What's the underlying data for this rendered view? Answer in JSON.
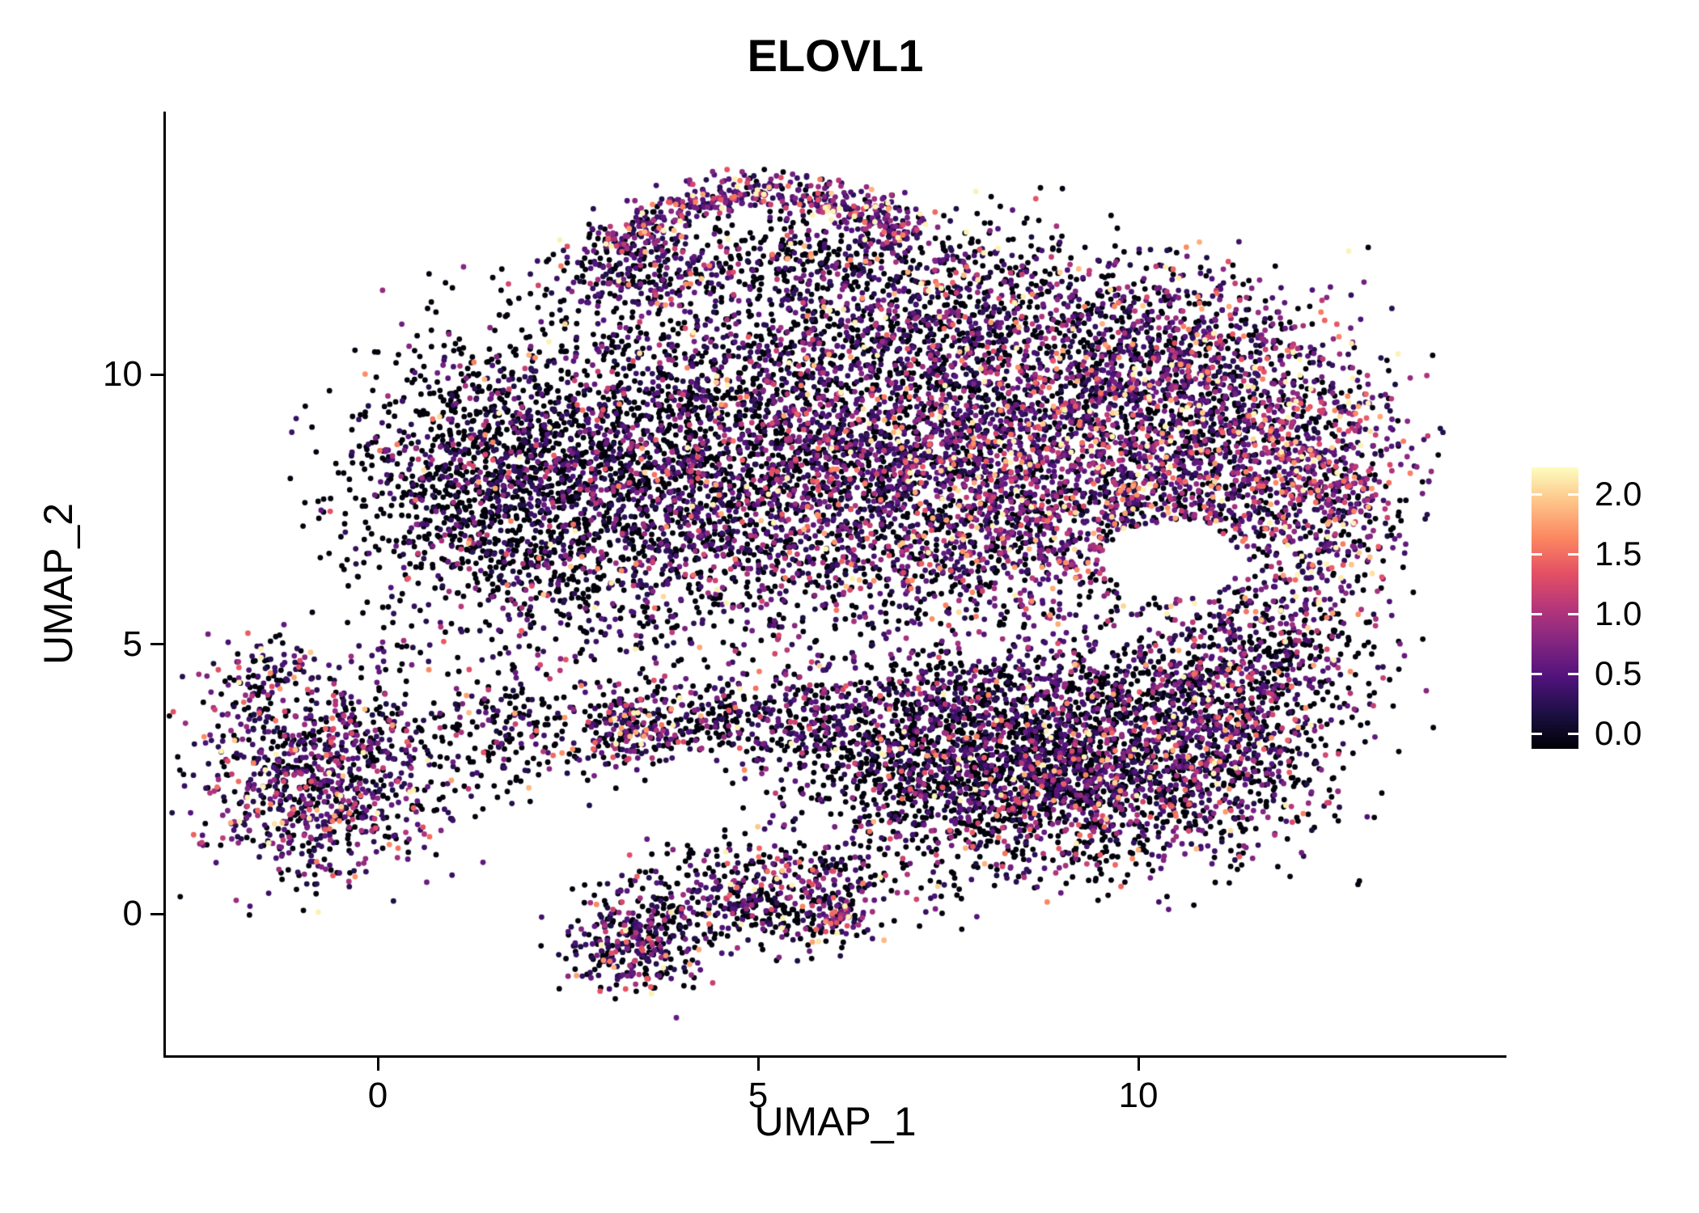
{
  "chart_data": {
    "type": "scatter",
    "title": "ELOVL1",
    "xlabel": "UMAP_1",
    "ylabel": "UMAP_2",
    "x_ticks": [
      0,
      5,
      10
    ],
    "y_ticks": [
      0,
      5,
      10
    ],
    "xlim": [
      -2.8,
      14.6
    ],
    "ylim": [
      -2.7,
      15.3
    ],
    "background_color": "#ffffff",
    "axis_color": "#000000",
    "point_radius_px": 3.4,
    "colorbar": {
      "ticks": [
        2.0,
        1.5,
        1.0,
        0.5,
        0.0
      ],
      "tick_labels": [
        "2.0",
        "1.5",
        "1.0",
        "0.5",
        "0.0"
      ],
      "value_max": 2.2,
      "value_min": 0.0,
      "colormap_name": "magma",
      "colormap_stops": [
        {
          "pos": 0.0,
          "color": "#000004"
        },
        {
          "pos": 0.125,
          "color": "#1c1044"
        },
        {
          "pos": 0.25,
          "color": "#4f127b"
        },
        {
          "pos": 0.375,
          "color": "#812581"
        },
        {
          "pos": 0.5,
          "color": "#b5367a"
        },
        {
          "pos": 0.625,
          "color": "#e55064"
        },
        {
          "pos": 0.75,
          "color": "#fb8761"
        },
        {
          "pos": 0.875,
          "color": "#fec287"
        },
        {
          "pos": 1.0,
          "color": "#fcfdbf"
        }
      ]
    },
    "points_note": "UMAP embedding of ~19000 cells colored by ELOVL1 expression (0 = black, high = pale yellow). Point cloud is generated deterministically from the cluster summary below, estimated from the figure.",
    "clusters": [
      {
        "type": "arc",
        "cx": 5.1,
        "cy": 11.2,
        "r": 2.3,
        "a0": 150,
        "a1": 35,
        "jitter": 0.22,
        "n": 520,
        "p0": 0.1,
        "escale": 0.85
      },
      {
        "type": "gauss",
        "cx": 3.35,
        "cy": 11.85,
        "sx": 0.55,
        "sy": 0.38,
        "n": 200,
        "p0": 0.45,
        "escale": 0.7
      },
      {
        "type": "gauss",
        "cx": 5.3,
        "cy": 12.15,
        "sx": 0.95,
        "sy": 0.38,
        "n": 260,
        "p0": 0.62,
        "escale": 0.6
      },
      {
        "type": "gauss",
        "cx": 7.7,
        "cy": 11.1,
        "sx": 1.4,
        "sy": 0.85,
        "n": 850,
        "p0": 0.5,
        "escale": 0.7
      },
      {
        "type": "gauss",
        "cx": 10.5,
        "cy": 10.5,
        "sx": 0.95,
        "sy": 0.75,
        "n": 430,
        "p0": 0.4,
        "escale": 0.8
      },
      {
        "type": "gauss",
        "cx": 1.45,
        "cy": 7.9,
        "sx": 1.0,
        "sy": 1.35,
        "n": 1250,
        "p0": 0.68,
        "escale": 0.5
      },
      {
        "type": "gauss",
        "cx": 3.4,
        "cy": 8.1,
        "sx": 1.25,
        "sy": 1.7,
        "n": 1700,
        "p0": 0.55,
        "escale": 0.6
      },
      {
        "type": "gauss",
        "cx": 5.8,
        "cy": 8.4,
        "sx": 1.5,
        "sy": 1.75,
        "n": 2100,
        "p0": 0.48,
        "escale": 0.65
      },
      {
        "type": "gauss",
        "cx": 8.3,
        "cy": 8.2,
        "sx": 1.5,
        "sy": 1.6,
        "n": 2300,
        "p0": 0.32,
        "escale": 0.8
      },
      {
        "type": "gauss",
        "cx": 10.8,
        "cy": 8.6,
        "sx": 1.15,
        "sy": 1.3,
        "n": 1400,
        "p0": 0.32,
        "escale": 0.85
      },
      {
        "type": "gauss",
        "cx": 12.55,
        "cy": 7.8,
        "sx": 0.55,
        "sy": 1.25,
        "n": 550,
        "p0": 0.25,
        "escale": 0.95
      },
      {
        "type": "gauss",
        "cx": -0.75,
        "cy": 2.55,
        "sx": 0.8,
        "sy": 0.95,
        "n": 950,
        "p0": 0.38,
        "escale": 0.75
      },
      {
        "type": "gauss",
        "cx": -1.55,
        "cy": 4.3,
        "sx": 0.3,
        "sy": 0.45,
        "n": 90,
        "p0": 0.5,
        "escale": 0.7
      },
      {
        "type": "gauss",
        "cx": 1.6,
        "cy": 3.3,
        "sx": 0.8,
        "sy": 0.55,
        "n": 200,
        "p0": 0.7,
        "escale": 0.5
      },
      {
        "type": "gauss",
        "cx": 5.0,
        "cy": 3.6,
        "sx": 1.6,
        "sy": 0.42,
        "n": 550,
        "p0": 0.55,
        "escale": 0.7
      },
      {
        "type": "gauss",
        "cx": 3.25,
        "cy": 3.45,
        "sx": 0.3,
        "sy": 0.3,
        "n": 110,
        "p0": 0.25,
        "escale": 0.9
      },
      {
        "type": "gauss",
        "cx": 7.6,
        "cy": 2.7,
        "sx": 1.1,
        "sy": 0.9,
        "n": 1250,
        "p0": 0.62,
        "escale": 0.6
      },
      {
        "type": "gauss",
        "cx": 9.6,
        "cy": 2.6,
        "sx": 1.2,
        "sy": 0.95,
        "n": 1450,
        "p0": 0.5,
        "escale": 0.75
      },
      {
        "type": "gauss",
        "cx": 11.2,
        "cy": 3.3,
        "sx": 0.8,
        "sy": 0.8,
        "n": 580,
        "p0": 0.45,
        "escale": 0.8
      },
      {
        "type": "gauss",
        "cx": 9.0,
        "cy": 4.1,
        "sx": 1.8,
        "sy": 0.4,
        "n": 480,
        "p0": 0.55,
        "escale": 0.65
      },
      {
        "type": "gauss",
        "cx": 11.6,
        "cy": 5.0,
        "sx": 0.8,
        "sy": 0.6,
        "n": 340,
        "p0": 0.5,
        "escale": 0.7
      },
      {
        "type": "gauss",
        "cx": 5.3,
        "cy": 0.45,
        "sx": 0.9,
        "sy": 0.55,
        "n": 430,
        "p0": 0.5,
        "escale": 0.7
      },
      {
        "type": "gauss",
        "cx": 3.35,
        "cy": -0.6,
        "sx": 0.45,
        "sy": 0.5,
        "n": 290,
        "p0": 0.45,
        "escale": 0.7
      },
      {
        "type": "gauss",
        "cx": 4.3,
        "cy": 0.1,
        "sx": 0.8,
        "sy": 0.4,
        "n": 150,
        "p0": 0.6,
        "escale": 0.6
      },
      {
        "type": "gauss",
        "cx": 6.0,
        "cy": -0.1,
        "sx": 0.18,
        "sy": 0.18,
        "n": 70,
        "p0": 0.2,
        "escale": 0.85
      }
    ],
    "holes": [
      {
        "cx": 10.45,
        "cy": 6.55,
        "rx": 0.9,
        "ry": 0.72
      }
    ]
  }
}
